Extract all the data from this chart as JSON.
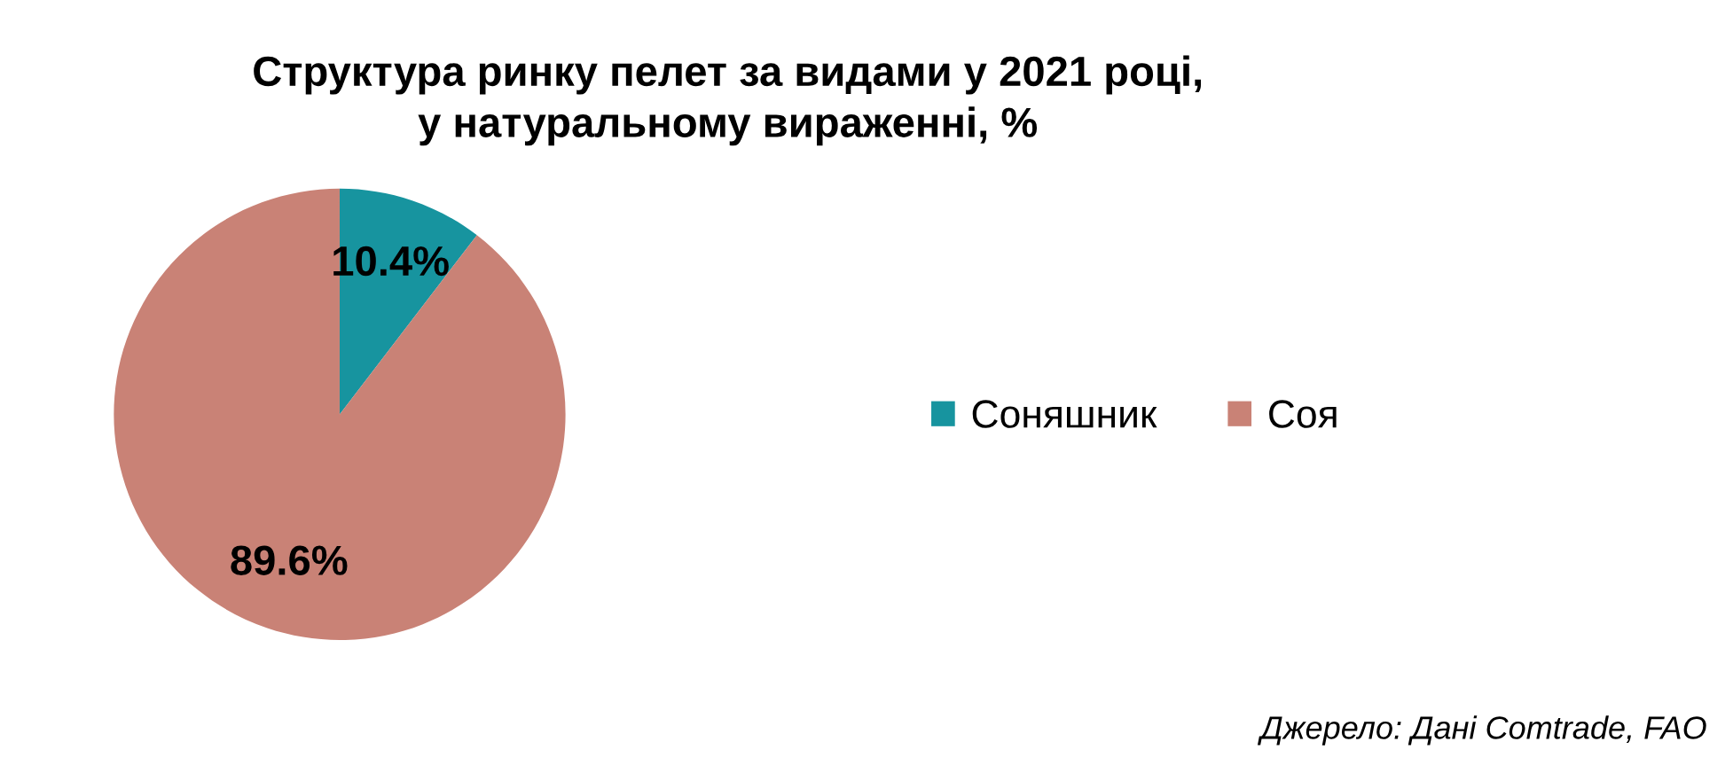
{
  "chart_data": {
    "type": "pie",
    "title": "Структура ринку пелет за видами у 2021 році,\nу натуральному вираженні, %",
    "categories": [
      "Соняшник",
      "Соя"
    ],
    "values": [
      10.4,
      89.6
    ],
    "colors": [
      "#17949f",
      "#c98276"
    ],
    "value_labels": [
      "10.4%",
      "89.6%"
    ],
    "legend": "right",
    "annotations": [
      "Джерело: Дані Comtrade, FAO"
    ]
  }
}
